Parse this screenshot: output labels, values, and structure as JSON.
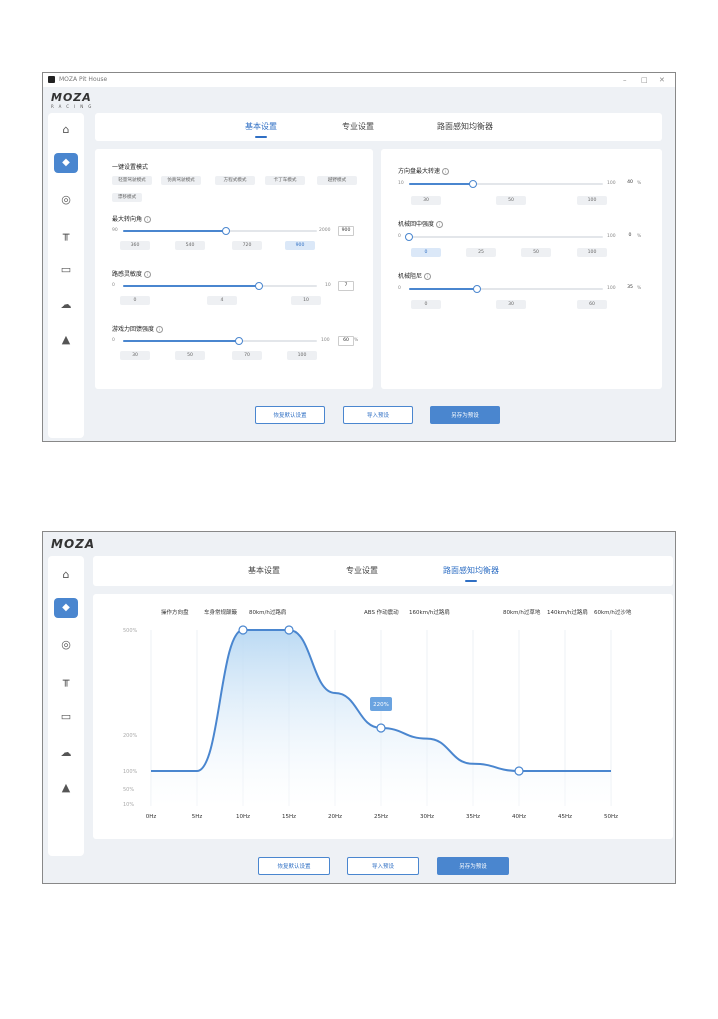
{
  "window": {
    "app_title": "MOZA Pit House",
    "minimize": "–",
    "maximize": "□",
    "close": "✕"
  },
  "logo": {
    "text": "MOZA",
    "sub": "RACING"
  },
  "sidebar": {
    "icons": [
      "home-icon",
      "wheelbase-icon",
      "steering-wheel-icon",
      "pedals-icon",
      "dashboard-icon",
      "cloud-upload-icon",
      "handbrake-icon"
    ]
  },
  "tabs": [
    "基本设置",
    "专业设置",
    "路面感知均衡器"
  ],
  "basic": {
    "mode_title": "一键设置模式",
    "modes": [
      "轻量驾驶模式",
      "仿真驾驶模式",
      "方程式模式",
      "卡丁车模式",
      "越野模式",
      "漂移模式"
    ],
    "steering_angle": {
      "label": "最大转向角",
      "min": "90",
      "max": "2000",
      "value": "900",
      "unit": "",
      "fraction": 0.53,
      "presets": [
        "360",
        "540",
        "720",
        "900"
      ],
      "selected": "900"
    },
    "sensitivity": {
      "label": "路感灵敏度",
      "min": "0",
      "max": "10",
      "value": "7",
      "fraction": 0.7,
      "presets": [
        "0",
        "4",
        "10"
      ]
    },
    "ffb_strength": {
      "label": "游戏力回馈强度",
      "min": "0",
      "max": "100",
      "value": "60",
      "unit": "%",
      "fraction": 0.6,
      "presets": [
        "30",
        "50",
        "70",
        "100"
      ]
    }
  },
  "right": {
    "max_speed": {
      "label": "方向盘最大转速",
      "min": "10",
      "max": "100",
      "value": "40",
      "unit": "%",
      "fraction": 0.33,
      "presets": [
        "30",
        "50",
        "100"
      ]
    },
    "centering": {
      "label": "机械回中强度",
      "min": "0",
      "max": "100",
      "value": "0",
      "unit": "%",
      "fraction": 0.0,
      "presets": [
        "0",
        "25",
        "50",
        "100"
      ],
      "selected": "0"
    },
    "damping": {
      "label": "机械阻尼",
      "min": "0",
      "max": "100",
      "value": "35",
      "unit": "%",
      "fraction": 0.35,
      "presets": [
        "0",
        "30",
        "60"
      ]
    }
  },
  "buttons": {
    "restore": "恢复默认设置",
    "import": "导入预设",
    "save": "另存为预设"
  },
  "equalizer": {
    "legend_left": [
      "操作方向盘",
      "车身常规颠簸",
      "80km/h过路肩"
    ],
    "legend_mid": [
      "ABS 作动震动",
      "160km/h过路肩"
    ],
    "legend_right": [
      "80km/h过草地",
      "140km/h过路肩",
      "60km/h过沙地"
    ],
    "tooltip": "220%"
  },
  "chart_data": {
    "type": "area",
    "x_tick_labels": [
      "0Hz",
      "5Hz",
      "10Hz",
      "15Hz",
      "20Hz",
      "25Hz",
      "30Hz",
      "35Hz",
      "40Hz",
      "45Hz",
      "50Hz"
    ],
    "y_tick_labels": [
      "500%",
      "200%",
      "100%",
      "50%",
      "10%"
    ],
    "ylim": [
      10,
      500
    ],
    "grid": true,
    "series": [
      {
        "x": [
          0,
          5,
          10,
          15,
          20,
          25,
          30,
          35,
          40,
          45,
          50
        ],
        "values": [
          100,
          100,
          500,
          500,
          320,
          220,
          190,
          120,
          100,
          100,
          100
        ]
      }
    ],
    "handles_x": [
      10,
      15,
      25,
      40
    ],
    "colors": {
      "line": "#4a86cf",
      "fill": "#b8d8f3"
    }
  }
}
